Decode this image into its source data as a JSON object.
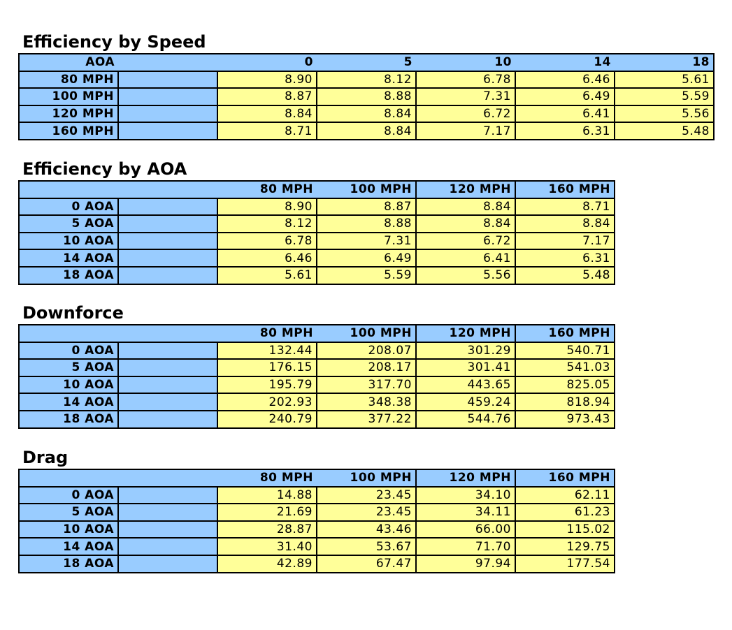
{
  "tables": [
    {
      "title": "Efficiency by Speed",
      "corner": "AOA",
      "columns": [
        "0",
        "5",
        "10",
        "14",
        "18"
      ],
      "rows": [
        {
          "label": "80 MPH",
          "values": [
            "8.90",
            "8.12",
            "6.78",
            "6.46",
            "5.61"
          ]
        },
        {
          "label": "100 MPH",
          "values": [
            "8.87",
            "8.88",
            "7.31",
            "6.49",
            "5.59"
          ]
        },
        {
          "label": "120 MPH",
          "values": [
            "8.84",
            "8.84",
            "6.72",
            "6.41",
            "5.56"
          ]
        },
        {
          "label": "160 MPH",
          "values": [
            "8.71",
            "8.84",
            "7.17",
            "6.31",
            "5.48"
          ]
        }
      ]
    },
    {
      "title": "Efficiency by AOA",
      "corner": "",
      "columns": [
        "80 MPH",
        "100 MPH",
        "120 MPH",
        "160 MPH"
      ],
      "rows": [
        {
          "label": "0 AOA",
          "values": [
            "8.90",
            "8.87",
            "8.84",
            "8.71"
          ]
        },
        {
          "label": "5 AOA",
          "values": [
            "8.12",
            "8.88",
            "8.84",
            "8.84"
          ]
        },
        {
          "label": "10 AOA",
          "values": [
            "6.78",
            "7.31",
            "6.72",
            "7.17"
          ]
        },
        {
          "label": "14 AOA",
          "values": [
            "6.46",
            "6.49",
            "6.41",
            "6.31"
          ]
        },
        {
          "label": "18 AOA",
          "values": [
            "5.61",
            "5.59",
            "5.56",
            "5.48"
          ]
        }
      ]
    },
    {
      "title": "Downforce",
      "corner": "",
      "columns": [
        "80 MPH",
        "100 MPH",
        "120 MPH",
        "160 MPH"
      ],
      "rows": [
        {
          "label": "0 AOA",
          "values": [
            "132.44",
            "208.07",
            "301.29",
            "540.71"
          ]
        },
        {
          "label": "5 AOA",
          "values": [
            "176.15",
            "208.17",
            "301.41",
            "541.03"
          ]
        },
        {
          "label": "10 AOA",
          "values": [
            "195.79",
            "317.70",
            "443.65",
            "825.05"
          ]
        },
        {
          "label": "14 AOA",
          "values": [
            "202.93",
            "348.38",
            "459.24",
            "818.94"
          ]
        },
        {
          "label": "18 AOA",
          "values": [
            "240.79",
            "377.22",
            "544.76",
            "973.43"
          ]
        }
      ]
    },
    {
      "title": "Drag",
      "corner": "",
      "columns": [
        "80 MPH",
        "100 MPH",
        "120 MPH",
        "160 MPH"
      ],
      "rows": [
        {
          "label": "0 AOA",
          "values": [
            "14.88",
            "23.45",
            "34.10",
            "62.11"
          ]
        },
        {
          "label": "5 AOA",
          "values": [
            "21.69",
            "23.45",
            "34.11",
            "61.23"
          ]
        },
        {
          "label": "10 AOA",
          "values": [
            "28.87",
            "43.46",
            "66.00",
            "115.02"
          ]
        },
        {
          "label": "14 AOA",
          "values": [
            "31.40",
            "53.67",
            "71.70",
            "129.75"
          ]
        },
        {
          "label": "18 AOA",
          "values": [
            "42.89",
            "67.47",
            "97.94",
            "177.54"
          ]
        }
      ]
    }
  ],
  "colors": {
    "header_bg": "#99ccff",
    "value_bg": "#ffff99",
    "border": "#000000"
  }
}
